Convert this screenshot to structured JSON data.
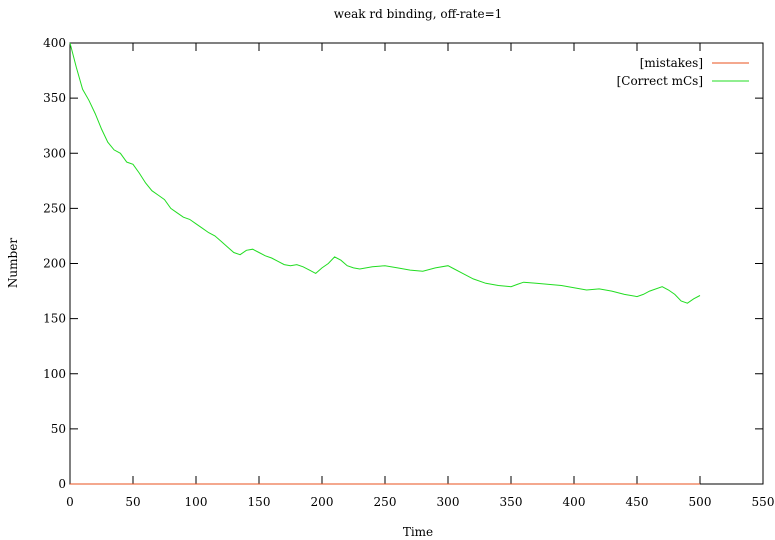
{
  "chart_data": {
    "type": "line",
    "title": "weak rd binding, off-rate=1",
    "xlabel": "Time",
    "ylabel": "Number",
    "xlim": [
      0,
      550
    ],
    "ylim": [
      0,
      400
    ],
    "xticks": [
      0,
      50,
      100,
      150,
      200,
      250,
      300,
      350,
      400,
      450,
      500,
      550
    ],
    "yticks": [
      0,
      50,
      100,
      150,
      200,
      250,
      300,
      350,
      400
    ],
    "grid": false,
    "legend_position": "top-right",
    "series": [
      {
        "name": "[mistakes]",
        "color": "#e8501e",
        "x": [
          0,
          100,
          200,
          300,
          400,
          500
        ],
        "y": [
          0,
          0,
          0,
          0,
          0,
          0
        ]
      },
      {
        "name": "[Correct mCs]",
        "color": "#22dd22",
        "x": [
          0,
          5,
          10,
          15,
          20,
          25,
          30,
          35,
          40,
          45,
          50,
          55,
          60,
          65,
          70,
          75,
          80,
          85,
          90,
          95,
          100,
          105,
          110,
          115,
          120,
          125,
          130,
          135,
          140,
          145,
          150,
          155,
          160,
          165,
          170,
          175,
          180,
          185,
          190,
          195,
          200,
          205,
          210,
          215,
          220,
          225,
          230,
          240,
          250,
          260,
          270,
          280,
          290,
          300,
          305,
          310,
          320,
          330,
          340,
          350,
          355,
          360,
          370,
          380,
          390,
          400,
          410,
          420,
          430,
          440,
          450,
          455,
          460,
          470,
          475,
          480,
          485,
          490,
          495,
          500
        ],
        "y": [
          400,
          378,
          358,
          348,
          336,
          322,
          310,
          303,
          300,
          292,
          290,
          282,
          273,
          266,
          262,
          258,
          250,
          246,
          242,
          240,
          236,
          232,
          228,
          225,
          220,
          215,
          210,
          208,
          212,
          213,
          210,
          207,
          205,
          202,
          199,
          198,
          199,
          197,
          194,
          191,
          196,
          200,
          206,
          203,
          198,
          196,
          195,
          197,
          198,
          196,
          194,
          193,
          196,
          198,
          195,
          192,
          186,
          182,
          180,
          179,
          181,
          183,
          182,
          181,
          180,
          178,
          176,
          177,
          175,
          172,
          170,
          172,
          175,
          179,
          176,
          172,
          166,
          164,
          168,
          171
        ]
      }
    ]
  }
}
